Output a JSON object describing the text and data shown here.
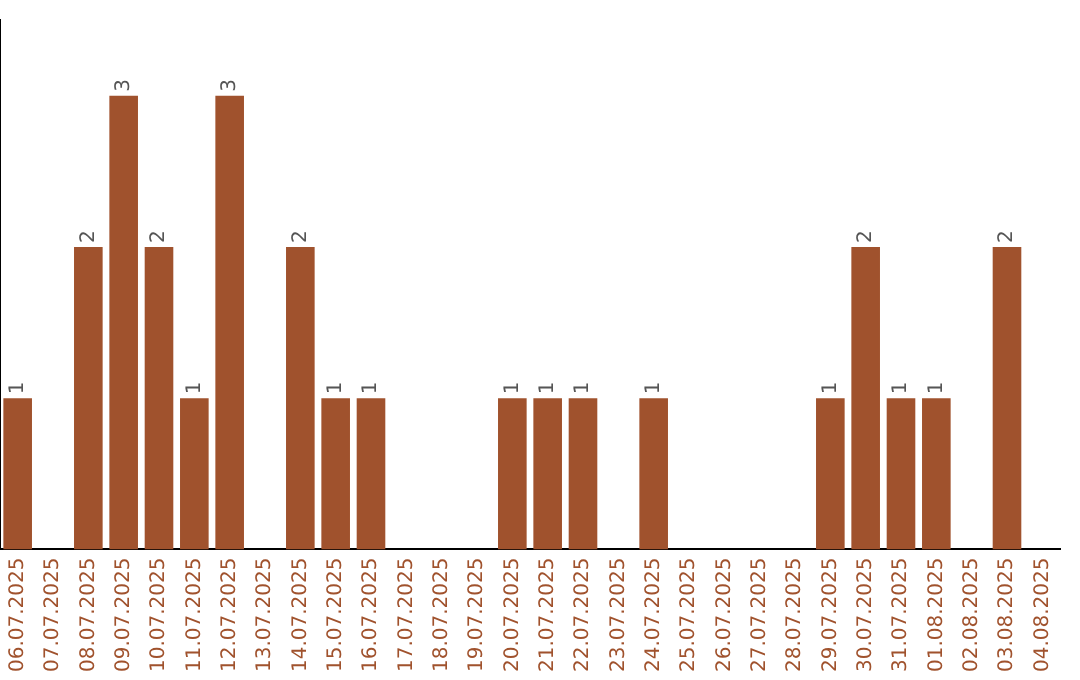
{
  "chart_data": {
    "type": "bar",
    "categories": [
      "06.07.2025",
      "07.07.2025",
      "08.07.2025",
      "09.07.2025",
      "10.07.2025",
      "11.07.2025",
      "12.07.2025",
      "13.07.2025",
      "14.07.2025",
      "15.07.2025",
      "16.07.2025",
      "17.07.2025",
      "18.07.2025",
      "19.07.2025",
      "20.07.2025",
      "21.07.2025",
      "22.07.2025",
      "23.07.2025",
      "24.07.2025",
      "25.07.2025",
      "26.07.2025",
      "27.07.2025",
      "28.07.2025",
      "29.07.2025",
      "30.07.2025",
      "31.07.2025",
      "01.08.2025",
      "02.08.2025",
      "03.08.2025",
      "04.08.2025"
    ],
    "values": [
      1,
      null,
      2,
      3,
      2,
      1,
      3,
      null,
      2,
      1,
      1,
      null,
      null,
      null,
      1,
      1,
      1,
      null,
      1,
      null,
      null,
      null,
      null,
      1,
      2,
      1,
      1,
      null,
      2,
      null
    ],
    "color": "#a0522d",
    "data_labels": true,
    "grid": false,
    "legend": false,
    "tick_labels": "x"
  }
}
